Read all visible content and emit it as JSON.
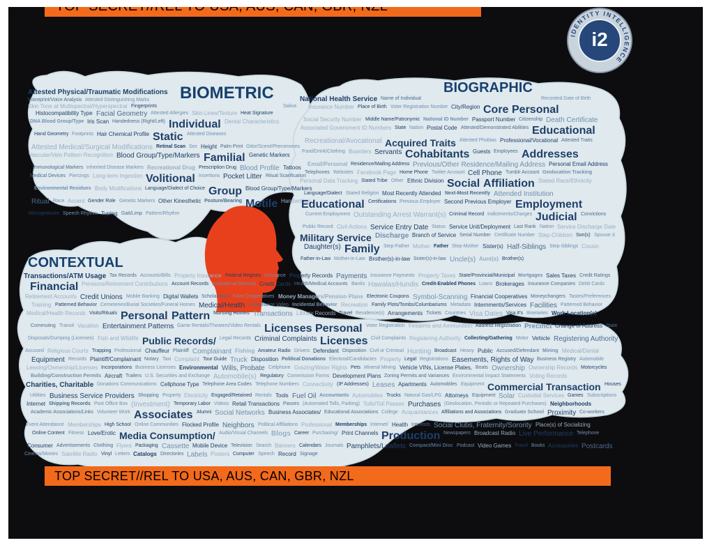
{
  "classification_banner": "TOP SECRET//REL TO USA, AUS, CAN, GBR, NZL",
  "logo": {
    "icon": "i2-intelligence-logo",
    "mark": "i2",
    "ring_text": "IDENTITY INTELLIGENCE"
  },
  "colors": {
    "background": "#0d0d0f",
    "cloud": "#dfe9ee",
    "banner": "#f26a1b",
    "head": "#e8401c",
    "text": "#1f3f68"
  },
  "categories": {
    "biometric": {
      "title": "BIOMETRIC",
      "terms": [
        "Attested Physical/Traumatic Modifications",
        "Voiceprint/Voice Analysis",
        "Attested Distinguishing Marks",
        "Skin Tone at Multispectral/Hyperspectral",
        "Fingerprints",
        "Saliva",
        "Histocompatibility Type",
        "Facial Geometry",
        "Attested Allergies",
        "Skin Lines/Texture",
        "Heat Signature",
        "DNA Blood Group/Type",
        "Iris Scan",
        "Handedness (Right/Left)",
        "Individual",
        "Dental Characteristics",
        "Hand Geometry",
        "Footprints",
        "Hair Chemical Profile",
        "Static",
        "Attested Diseases",
        "Attested Medical/Surgical Modifications",
        "Retinal Scan",
        "Sex",
        "Height",
        "Palm Print",
        "Odor/Scent/Pheromones",
        "Vascular/Vein Pattern Recognition",
        "Blood Group/Type/Markers",
        "Familial",
        "Genetic Markers",
        "Immunological Markers",
        "Inherited Disease Markers",
        "Recreational Drug",
        "Prescription Drug",
        "Blood Profile",
        "Tattoos",
        "Medical Devices",
        "Piercings",
        "Long-term Ingestion",
        "Volitional",
        "Insertions",
        "Pocket Litter",
        "Ritual Scarification",
        "Environmental Residues",
        "Body Modifications",
        "Language/Dialect of Choice",
        "Group",
        "Blood Group/Type/Markers",
        "Ritual",
        "Race",
        "Accent",
        "Gender Role",
        "Genetic Markers",
        "Other Kinesthetic",
        "Posture/Bearing",
        "Motile",
        "Handwriting",
        "Microgestures",
        "Speech Rhythm",
        "Typing",
        "Gait/Limp",
        "Pattern/Rhythm"
      ]
    },
    "biographic": {
      "title": "BIOGRAPHIC",
      "terms": [
        "National Health Service",
        "Name of Individual",
        "Recorded Date of Birth",
        "Insurance Number",
        "Place of Birth",
        "Voter Registration Number",
        "City/Region",
        "Core",
        "Personal",
        "Social Security Number",
        "Middle Name/Patronymic",
        "National ID Number",
        "Passport Number",
        "Citizenship",
        "Death Certificate",
        "Associated Government ID Numbers",
        "State",
        "Nation",
        "Postal Code",
        "Attested/Demonstrated Abilities",
        "Educational",
        "Recreational/Avocational",
        "Acquired Traits",
        "Attested Phobias",
        "Professional/Vocational",
        "Attested Traits",
        "Food/Drink/Clothing",
        "Boarders",
        "Servants",
        "Cohabitants",
        "Guests",
        "Employees",
        "Addresses",
        "Email/Personal",
        "Residence/Mailing Address",
        "Previous/Other Residence/Mailing Address",
        "Personal Email Address",
        "Telephones",
        "Websites",
        "Facebook Page",
        "Home Phone",
        "Twitter Account",
        "Cell Phone",
        "Tumblr Account",
        "Geolocation Tracking",
        "Personal Data Tracking",
        "Stated Tribe",
        "Other",
        "Ethnic Division",
        "Social",
        "Affiliation",
        "Stated Race/Ethnicity",
        "Language/Dialect",
        "Stated Religion",
        "Most Recently Attended",
        "Next-Most Recently",
        "Attended Institution",
        "Educational",
        "Certifications",
        "Previous Employer",
        "Second Previous Employer",
        "Employment",
        "Current Employment",
        "Outstanding Arrest Warrant(s)",
        "Criminal Record",
        "Indictments/Charges",
        "Judicial",
        "Convictions",
        "Public Record",
        "Civil Actions",
        "Service Entry Date",
        "Status",
        "Service Unit/Deployment",
        "Last Rank",
        "Nation",
        "Service Discharge Date",
        "Military Service",
        "Discharge",
        "Branch of Service",
        "Serial Number",
        "Certificate Number",
        "Step-Children",
        "Son(s)",
        "Spouse X",
        "Daughter(s)",
        "Family",
        "Step-Father",
        "Mother",
        "Father",
        "Step-Mother",
        "Sister(s)",
        "Half-Siblings",
        "Step-Siblings",
        "Cousin",
        "Father-in-Law",
        "Mother-in-Law",
        "Brother(s)-in-law",
        "Sister(s)-in-law",
        "Uncle(s)",
        "Aunt(s)",
        "Brother(s)"
      ]
    },
    "contextual": {
      "title": "CONTEXTUAL",
      "terms": [
        "Transactions/ATM Usage",
        "Tax Records",
        "Accounts/Bills",
        "Property Insurance",
        "Federal Registry",
        "Insurance",
        "Property Records",
        "Payments",
        "Insurance Payments",
        "Property Taxes",
        "State/Provincial/Municipal",
        "Mortgages",
        "Sales Taxes",
        "Credit Ratings",
        "Financial",
        "Pensions/Retirement Contributions",
        "Account Records",
        "Institutional Records",
        "Credit Cards",
        "Health/Medical Accounts",
        "Banks",
        "Hawalas/Hundis",
        "Credit-Enabled Phones",
        "Loans",
        "Brokerages",
        "Insurance Companies",
        "Debit Cards",
        "Retirement Accounts",
        "Credit Unions",
        "Mobile Banking",
        "Digital Wallets",
        "Scholarships",
        "Farm Cooperatives",
        "Money Managers/Pension Plans",
        "Electronic Coupons",
        "Symbol-Scanning",
        "Financial Cooperatives",
        "Moneychangers",
        "Tastes/Preferences",
        "Training",
        "Patterned Behavior",
        "Cemeteries/Burial Societies/Funeral Homes",
        "Medical/Health",
        "Surveillance Video",
        "Incidental Behavior",
        "Recreation",
        "Family Plots/Tombs/Columbariums",
        "Metadata",
        "Internments/Services",
        "Facilities",
        "Patterned Behavior",
        "Medical/Health Records",
        "Visits/Rituals",
        "Personal",
        "Pattern",
        "Nursing Homes",
        "Transactions",
        "Library Records",
        "Travel",
        "Residence(s)",
        "Arrangements",
        "Tickets",
        "Countries",
        "Visa Dates",
        "Visa #'s",
        "Itineraries",
        "Work Location(s)",
        "Commuting",
        "Transit",
        "Vacation",
        "Entertainment Patterns",
        "Game Rentals/Theaters/Video Rentals",
        "Licenses",
        "Personal",
        "Voter Registration",
        "Firearms and Ammunition",
        "Address Registration",
        "Precinct",
        "Change of Address",
        "State",
        "Disposals/Dumping (Licenses)",
        "Fish and Wildlife",
        "Public Records/",
        "Legal Records",
        "Criminal Complaints",
        "Licenses",
        "Civil Complaints",
        "Registering Authority",
        "Collecting/Gathering",
        "Motor",
        "Vehicle",
        "Registering Authority",
        "Accused",
        "Religious Courts",
        "Trapping",
        "Professional",
        "Chauffeur",
        "Plaintiff",
        "Complainant",
        "Fishing",
        "Amateur Radio",
        "Drivers",
        "Defendant",
        "Disposition",
        "Civil or Criminal",
        "Hunting",
        "Broadcast",
        "Heavy",
        "Public",
        "Accused/Defendant",
        "Mining",
        "Medical/Dental",
        "Equipment",
        "Records",
        "Plaintiff/Complainant",
        "Notary",
        "Taxi",
        "Complaint",
        "Tour Guide",
        "Truck",
        "Disposition",
        "Political Donations",
        "Electoral/Candidacies",
        "Property",
        "Legal",
        "Registrations",
        "Easements, Rights of Way",
        "Business Registry",
        "Automobile",
        "Leasing/Ownership/Licenses",
        "Incorporations",
        "Business Licenses",
        "Environmental",
        "Wills, Probate",
        "Cellphone",
        "Grazing/Water Rights",
        "Pets",
        "Mineral Mining",
        "Vehicle VINs, License Plates,",
        "Boats",
        "Ownership",
        "Ownership Records",
        "Motorcycles",
        "Building/Construction Permits",
        "Aircraft",
        "Trailers",
        "U.S. Securities and Exchange",
        "Automobile(s)",
        "Regulatory",
        "Commission Forms",
        "Development Plans",
        "Zoning Permits and Variances",
        "Environmental Impact Statements",
        "Voting Records",
        "Charities, Charitable",
        "Donations Communications",
        "Cellphone Type",
        "Telephone Area Codes",
        "Telephone Numbers",
        "Connectivity",
        "(IP Addresses)",
        "Leases",
        "Apartments",
        "Automobiles",
        "Equipment",
        "Commercial Transaction",
        "Houses",
        "Utilities",
        "Business Service Providers",
        "Shopping",
        "Property",
        "Electricity",
        "Engaged/Retained",
        "Rentals",
        "Tools",
        "Fuel Oil",
        "Accountants",
        "Automobiles",
        "Trucks",
        "Natural Gas/LPG",
        "Attorneys",
        "Equipment",
        "Solar",
        "Custodial Services",
        "Games",
        "Subscriptions",
        "Internet",
        "Shipping Records",
        "Post Office Box",
        "(Investment)",
        "Temporary Labor",
        "Videos",
        "Retail Transactions",
        "Passes",
        "(Automated Tolls, Parking)",
        "Tolls/Toll Passes",
        "Purchases",
        "(Geolocation, Periodic or Repeated Purchases)",
        "Neighborhoods",
        "Academic Associations/Links",
        "Volunteer Work",
        "Associates",
        "Alumni",
        "Social Networks",
        "Business Associates/",
        "Educational Associations",
        "College",
        "Acquaintances",
        "Affiliations and Associations",
        "Graduate School",
        "Proximity",
        "Co-workers",
        "Event Attendance",
        "Memberships",
        "High School",
        "Online Communities",
        "Flocked Profile",
        "Neighbors",
        "Political Affiliations",
        "Professional",
        "Memberships",
        "Internet/",
        "Health",
        "Interests",
        "Social Clubs, Fraternity/Sorority",
        "Place(s) of Socializing",
        "Online Content",
        "Fitness",
        "Love/Erotic",
        "Media Consumption/",
        "Audio/Visual Channels",
        "Blogs",
        "Career",
        "Purchasing/",
        "Print Channels",
        "Production",
        "Newspapers",
        "Broadcast Radio",
        "Live Performance",
        "Telephone",
        "Consumer",
        "Advertisements",
        "Clothing",
        "Flyers",
        "Packaging",
        "Cassette",
        "Mobile Device",
        "Television",
        "Search",
        "Banners",
        "Calendars",
        "Journals",
        "Pamphlets/Leaflets",
        "Compact/Mini Disc",
        "Podcast",
        "Video Games",
        "Travel",
        "Books",
        "Accessories",
        "Postcards",
        "Cinema/Movies",
        "Satellite Radio",
        "Vinyl",
        "Letters",
        "Catalogs",
        "Directories",
        "Labels",
        "Posters",
        "Computer",
        "Speech",
        "Record",
        "Signage"
      ]
    }
  }
}
